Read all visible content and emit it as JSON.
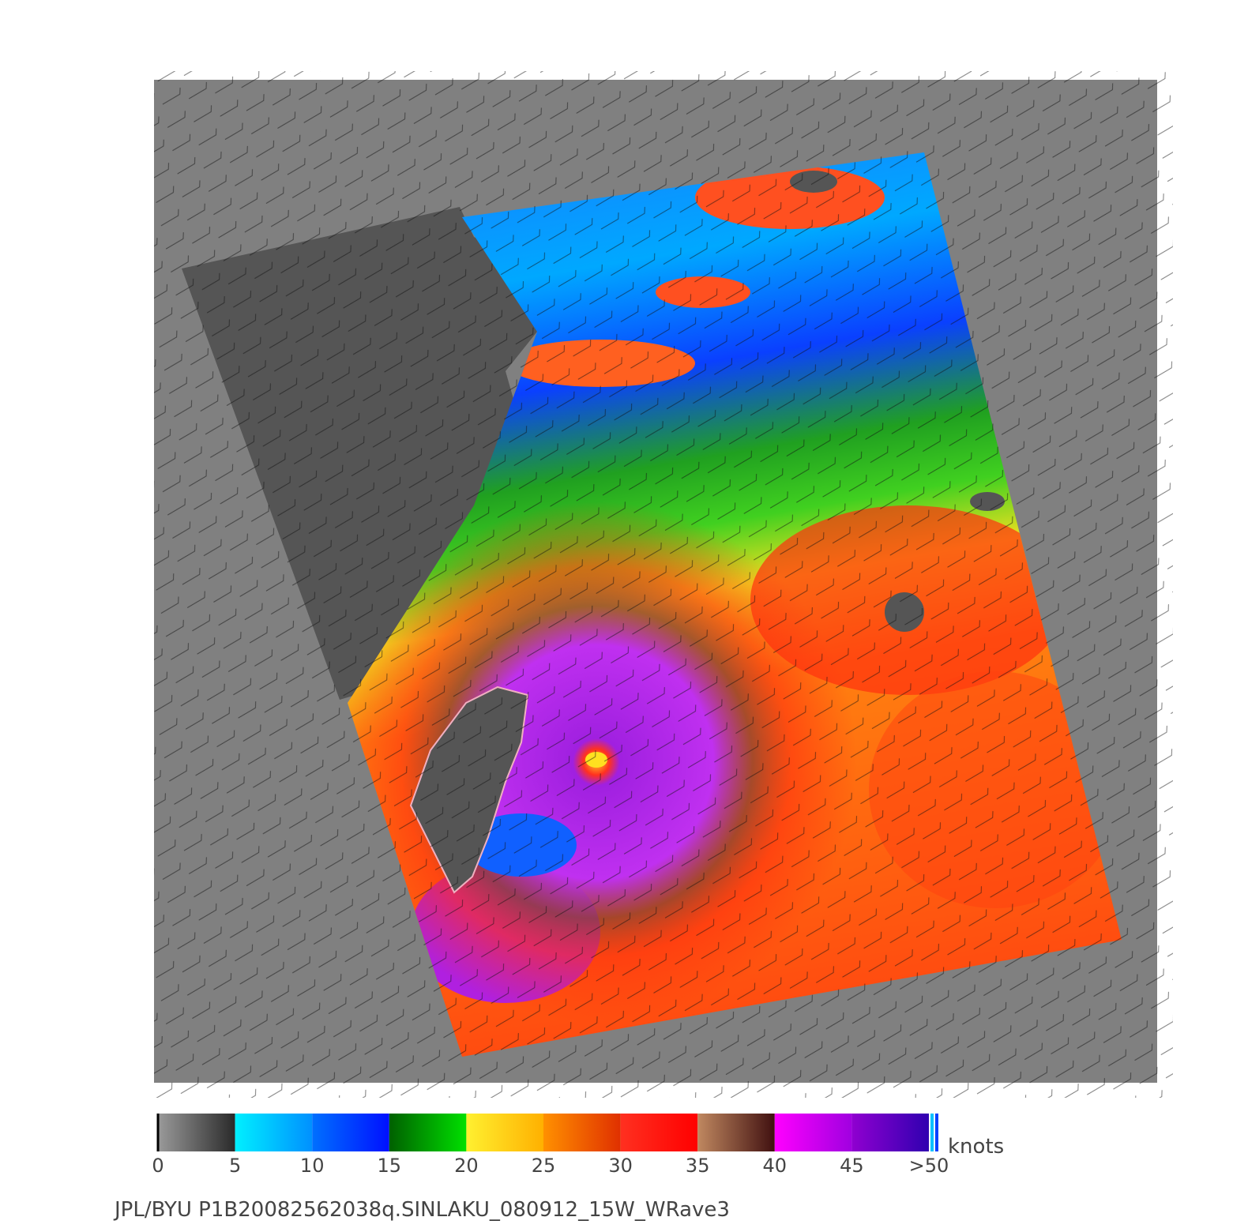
{
  "colorbar": {
    "range": [
      0,
      50
    ],
    "ticks": [
      0,
      5,
      10,
      15,
      20,
      25,
      30,
      35,
      40,
      45,
      {
        "value": 50,
        "label": ">50"
      }
    ],
    "segments": [
      {
        "from": 0,
        "to": 5,
        "colors": [
          "#9a9a9a",
          "#2a2a2a"
        ]
      },
      {
        "from": 5,
        "to": 10,
        "colors": [
          "#00f0ff",
          "#0090ff"
        ]
      },
      {
        "from": 10,
        "to": 15,
        "colors": [
          "#0070ff",
          "#0010ff"
        ]
      },
      {
        "from": 15,
        "to": 20,
        "colors": [
          "#006000",
          "#00e000"
        ]
      },
      {
        "from": 20,
        "to": 25,
        "colors": [
          "#fff030",
          "#ffb000"
        ]
      },
      {
        "from": 25,
        "to": 30,
        "colors": [
          "#ff9000",
          "#e03000"
        ]
      },
      {
        "from": 30,
        "to": 35,
        "colors": [
          "#ff3020",
          "#ff0000"
        ]
      },
      {
        "from": 35,
        "to": 40,
        "colors": [
          "#c08860",
          "#401010"
        ]
      },
      {
        "from": 40,
        "to": 45,
        "colors": [
          "#ff00ff",
          "#a000e0"
        ]
      },
      {
        "from": 45,
        "to": 50,
        "colors": [
          "#9000d0",
          "#3000b0"
        ]
      }
    ],
    "unit": "knots"
  },
  "caption": "JPL/BYU  P1B20082562038q.SINLAKU_080912_15W_WRave3"
}
